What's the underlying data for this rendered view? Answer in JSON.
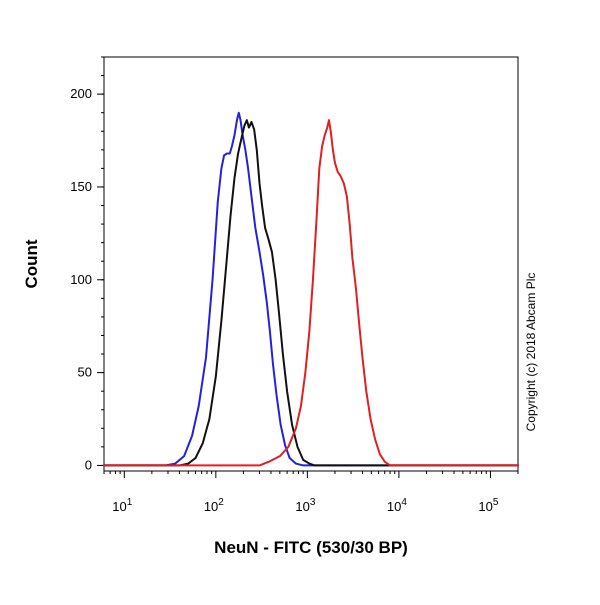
{
  "chart_data": {
    "type": "line",
    "xlabel": "NeuN - FITC (530/30 BP)",
    "ylabel": "Count",
    "x_scale": "log",
    "xlim": [
      6,
      200000
    ],
    "ylim": [
      -3,
      220
    ],
    "x_ticks": [
      {
        "base": "10",
        "exp": "1",
        "value": 10
      },
      {
        "base": "10",
        "exp": "2",
        "value": 100
      },
      {
        "base": "10",
        "exp": "3",
        "value": 1000
      },
      {
        "base": "10",
        "exp": "4",
        "value": 10000
      },
      {
        "base": "10",
        "exp": "5",
        "value": 100000
      }
    ],
    "y_ticks": [
      {
        "label": "0",
        "value": 0
      },
      {
        "label": "50",
        "value": 50
      },
      {
        "label": "100",
        "value": 100
      },
      {
        "label": "150",
        "value": 150
      },
      {
        "label": "200",
        "value": 200
      }
    ],
    "grid": false,
    "copyright": "Copyright (c) 2018 Abcam Plc",
    "series": [
      {
        "color": "#2222dd",
        "points": [
          [
            6,
            0
          ],
          [
            28,
            0
          ],
          [
            36,
            1
          ],
          [
            45,
            5
          ],
          [
            55,
            16
          ],
          [
            65,
            32
          ],
          [
            78,
            58
          ],
          [
            92,
            100
          ],
          [
            105,
            142
          ],
          [
            115,
            160
          ],
          [
            123,
            167
          ],
          [
            132,
            168
          ],
          [
            142,
            168
          ],
          [
            150,
            172
          ],
          [
            160,
            178
          ],
          [
            170,
            186
          ],
          [
            178,
            190
          ],
          [
            186,
            186
          ],
          [
            196,
            178
          ],
          [
            210,
            170
          ],
          [
            225,
            160
          ],
          [
            245,
            145
          ],
          [
            270,
            128
          ],
          [
            300,
            115
          ],
          [
            330,
            102
          ],
          [
            360,
            88
          ],
          [
            390,
            72
          ],
          [
            420,
            55
          ],
          [
            460,
            38
          ],
          [
            510,
            22
          ],
          [
            570,
            11
          ],
          [
            640,
            4
          ],
          [
            750,
            1
          ],
          [
            900,
            0
          ],
          [
            200000,
            0
          ]
        ]
      },
      {
        "color": "#111111",
        "points": [
          [
            6,
            0
          ],
          [
            40,
            0
          ],
          [
            50,
            1
          ],
          [
            60,
            4
          ],
          [
            72,
            12
          ],
          [
            85,
            25
          ],
          [
            100,
            48
          ],
          [
            115,
            78
          ],
          [
            130,
            108
          ],
          [
            145,
            135
          ],
          [
            160,
            155
          ],
          [
            175,
            168
          ],
          [
            190,
            176
          ],
          [
            205,
            183
          ],
          [
            218,
            186
          ],
          [
            230,
            182
          ],
          [
            245,
            185
          ],
          [
            262,
            181
          ],
          [
            280,
            170
          ],
          [
            300,
            152
          ],
          [
            320,
            140
          ],
          [
            345,
            128
          ],
          [
            375,
            122
          ],
          [
            410,
            115
          ],
          [
            450,
            100
          ],
          [
            490,
            82
          ],
          [
            540,
            60
          ],
          [
            600,
            40
          ],
          [
            680,
            22
          ],
          [
            780,
            10
          ],
          [
            900,
            3
          ],
          [
            1050,
            1
          ],
          [
            1200,
            0
          ],
          [
            200000,
            0
          ]
        ]
      },
      {
        "color": "#e02020",
        "points": [
          [
            6,
            0
          ],
          [
            300,
            0
          ],
          [
            380,
            2
          ],
          [
            500,
            5
          ],
          [
            620,
            10
          ],
          [
            750,
            20
          ],
          [
            850,
            32
          ],
          [
            950,
            50
          ],
          [
            1050,
            72
          ],
          [
            1150,
            100
          ],
          [
            1250,
            130
          ],
          [
            1350,
            160
          ],
          [
            1450,
            172
          ],
          [
            1550,
            178
          ],
          [
            1650,
            182
          ],
          [
            1720,
            186
          ],
          [
            1800,
            180
          ],
          [
            1900,
            170
          ],
          [
            2000,
            163
          ],
          [
            2150,
            158
          ],
          [
            2300,
            156
          ],
          [
            2500,
            152
          ],
          [
            2700,
            145
          ],
          [
            2900,
            130
          ],
          [
            3100,
            112
          ],
          [
            3400,
            95
          ],
          [
            3700,
            75
          ],
          [
            4000,
            58
          ],
          [
            4400,
            40
          ],
          [
            4900,
            25
          ],
          [
            5500,
            14
          ],
          [
            6200,
            6
          ],
          [
            7000,
            2
          ],
          [
            8000,
            0
          ],
          [
            200000,
            0
          ]
        ]
      }
    ]
  }
}
